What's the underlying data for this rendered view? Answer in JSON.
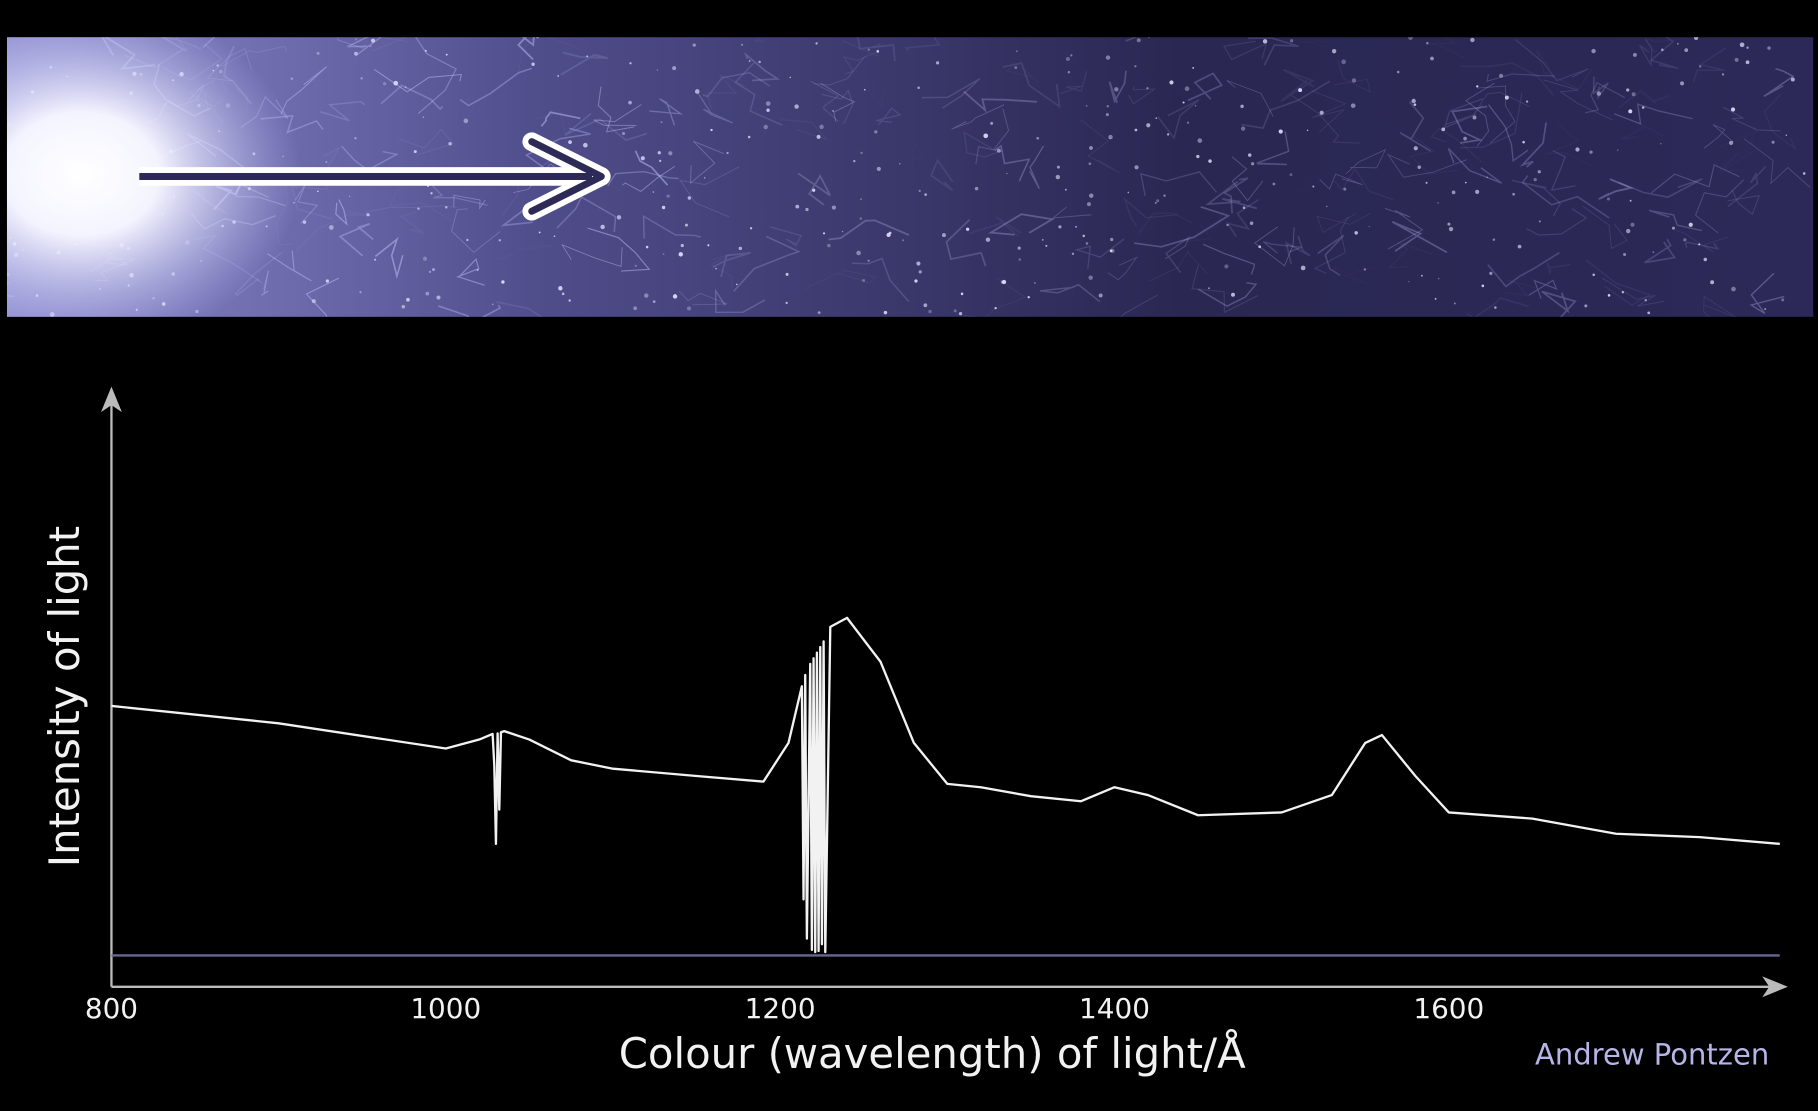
{
  "chart_data": {
    "type": "line",
    "y_label": "Intensity of light",
    "x_label": "Colour (wavelength) of light/Å",
    "credit": "Andrew Pontzen",
    "xlim": [
      800,
      1800
    ],
    "xticks": [
      800,
      1000,
      1200,
      1400,
      1600
    ],
    "ylim": [
      0,
      100
    ],
    "grid": false,
    "series": [
      {
        "color": "#f2f2f2",
        "x": [
          800,
          900,
          1000,
          1020,
          1028,
          1029,
          1030,
          1031,
          1032,
          1033,
          1035,
          1050,
          1075,
          1100,
          1150,
          1190,
          1205,
          1213,
          1214,
          1215,
          1216,
          1218,
          1219,
          1220,
          1221,
          1222,
          1223,
          1224,
          1225,
          1226,
          1227,
          1230,
          1240,
          1260,
          1280,
          1300,
          1320,
          1350,
          1380,
          1400,
          1420,
          1450,
          1500,
          1530,
          1550,
          1560,
          1580,
          1600,
          1650,
          1700,
          1750,
          1798
        ],
        "values": [
          44.5,
          41.4,
          36.9,
          38.5,
          39.5,
          34,
          19.9,
          39.6,
          26,
          39.8,
          40,
          38.5,
          34.8,
          33.3,
          32,
          31,
          37.9,
          48,
          10,
          50,
          3,
          52,
          1,
          53,
          0.6,
          54,
          0.8,
          55,
          2,
          56,
          0.6,
          58.6,
          60.2,
          52.4,
          37.9,
          30.6,
          30,
          28.4,
          27.5,
          30,
          28.6,
          25,
          25.5,
          28.6,
          37.9,
          39.3,
          32,
          25.5,
          24.4,
          21.7,
          21.1,
          19.9
        ]
      }
    ]
  }
}
